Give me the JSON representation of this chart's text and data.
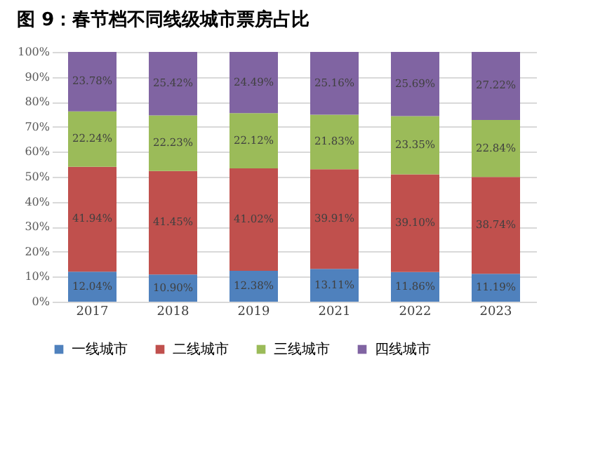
{
  "chart_data": {
    "type": "bar",
    "title": "图 9：春节档不同线级城市票房占比",
    "categories": [
      "2017",
      "2018",
      "2019",
      "2021",
      "2022",
      "2023"
    ],
    "stacked": true,
    "series": [
      {
        "name": "一线城市",
        "color": "#4f81bd",
        "values": [
          12.04,
          10.9,
          12.38,
          13.11,
          11.86,
          11.19
        ],
        "value_labels": [
          "12.04%",
          "10.90%",
          "12.38%",
          "13.11%",
          "11.86%",
          "11.19%"
        ]
      },
      {
        "name": "二线城市",
        "color": "#c0504d",
        "values": [
          41.94,
          41.45,
          41.02,
          39.91,
          39.1,
          38.74
        ],
        "value_labels": [
          "41.94%",
          "41.45%",
          "41.02%",
          "39.91%",
          "39.10%",
          "38.74%"
        ]
      },
      {
        "name": "三线城市",
        "color": "#9bbb59",
        "values": [
          22.24,
          22.23,
          22.12,
          21.83,
          23.35,
          22.84
        ],
        "value_labels": [
          "22.24%",
          "22.23%",
          "22.12%",
          "21.83%",
          "23.35%",
          "22.84%"
        ]
      },
      {
        "name": "四线城市",
        "color": "#8064a2",
        "values": [
          23.78,
          25.42,
          24.49,
          25.16,
          25.69,
          27.22
        ],
        "value_labels": [
          "23.78%",
          "25.42%",
          "24.49%",
          "25.16%",
          "25.69%",
          "27.22%"
        ]
      }
    ],
    "ylim": [
      0,
      100
    ],
    "yticks": [
      {
        "value": 0,
        "label": "0%"
      },
      {
        "value": 10,
        "label": "10%"
      },
      {
        "value": 20,
        "label": "20%"
      },
      {
        "value": 30,
        "label": "30%"
      },
      {
        "value": 40,
        "label": "40%"
      },
      {
        "value": 50,
        "label": "50%"
      },
      {
        "value": 60,
        "label": "60%"
      },
      {
        "value": 70,
        "label": "70%"
      },
      {
        "value": 80,
        "label": "80%"
      },
      {
        "value": 90,
        "label": "90%"
      },
      {
        "value": 100,
        "label": "100%"
      }
    ],
    "grid": "y",
    "legend": "bottom"
  }
}
